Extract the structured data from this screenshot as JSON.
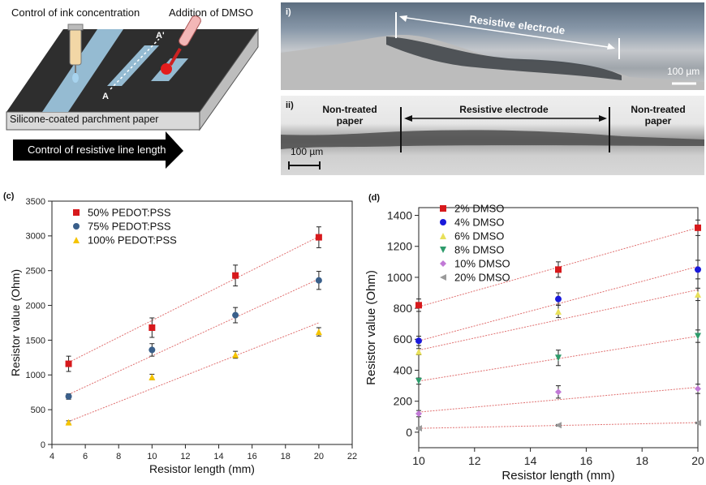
{
  "schematic": {
    "ink_label": "Control of ink concentration",
    "dmso_label": "Addition of DMSO",
    "substrate_label": "Silicone-coated parchment paper",
    "length_label": "Control of resistive line length",
    "point_a": "A",
    "point_a_prime": "A'"
  },
  "micrographs": {
    "top": {
      "panel": "i)",
      "electrode_label": "Resistive electrode",
      "scale_label": "100 µm"
    },
    "bottom": {
      "panel": "ii)",
      "left_label": "Non-treated paper",
      "center_label": "Resistive electrode",
      "right_label": "Non-treated paper",
      "scale_label": "100 µm"
    }
  },
  "chart_data": [
    {
      "panel": "(c)",
      "type": "scatter",
      "xlabel": "Resistor length (mm)",
      "ylabel": "Resistor value (Ohm)",
      "xlim": [
        4,
        22
      ],
      "ylim": [
        0,
        3500
      ],
      "xticks": [
        4,
        6,
        8,
        10,
        12,
        14,
        16,
        18,
        20,
        22
      ],
      "yticks": [
        0,
        500,
        1000,
        1500,
        2000,
        2500,
        3000,
        3500
      ],
      "legend_position": "top-left",
      "series": [
        {
          "name": "50% PEDOT:PSS",
          "marker": "square",
          "color": "#d7191c",
          "x": [
            5,
            10,
            15,
            20
          ],
          "y": [
            1160,
            1680,
            2430,
            2980
          ],
          "err": [
            110,
            140,
            150,
            150
          ],
          "fit": [
            1180,
            2990
          ]
        },
        {
          "name": "75% PEDOT:PSS",
          "marker": "circle",
          "color": "#3a5f8a",
          "x": [
            5,
            10,
            15,
            20
          ],
          "y": [
            690,
            1360,
            1860,
            2360
          ],
          "err": [
            40,
            90,
            110,
            130
          ],
          "fit": [
            720,
            2380
          ]
        },
        {
          "name": "100% PEDOT:PSS",
          "marker": "triangle",
          "color": "#f5c400",
          "x": [
            5,
            10,
            15,
            20
          ],
          "y": [
            320,
            970,
            1290,
            1620
          ],
          "err": [
            20,
            40,
            50,
            60
          ],
          "fit": [
            330,
            1750
          ]
        }
      ]
    },
    {
      "panel": "(d)",
      "type": "scatter",
      "xlabel": "Resistor length (mm)",
      "ylabel": "Resistor value (Ohm)",
      "xlim": [
        10,
        20
      ],
      "ylim": [
        -100,
        1450
      ],
      "xticks": [
        10,
        12,
        14,
        16,
        18,
        20
      ],
      "yticks": [
        0,
        200,
        400,
        600,
        800,
        1000,
        1200,
        1400
      ],
      "legend_position": "top-left",
      "series": [
        {
          "name": "2% DMSO",
          "marker": "square",
          "color": "#d7191c",
          "x": [
            10,
            15,
            20
          ],
          "y": [
            820,
            1050,
            1320
          ],
          "err": [
            40,
            50,
            50
          ],
          "fit": [
            810,
            1320
          ]
        },
        {
          "name": "4% DMSO",
          "marker": "circle",
          "color": "#1a1adb",
          "x": [
            10,
            15,
            20
          ],
          "y": [
            590,
            860,
            1050
          ],
          "err": [
            30,
            40,
            60
          ],
          "fit": [
            590,
            1070
          ]
        },
        {
          "name": "6% DMSO",
          "marker": "triangle",
          "color": "#e8e05a",
          "x": [
            10,
            15,
            20
          ],
          "y": [
            520,
            780,
            890
          ],
          "err": [
            20,
            40,
            40
          ],
          "fit": [
            530,
            920
          ]
        },
        {
          "name": "8% DMSO",
          "marker": "triangle-down",
          "color": "#2e9b6b",
          "x": [
            10,
            15,
            20
          ],
          "y": [
            330,
            480,
            620
          ],
          "err": [
            20,
            50,
            40
          ],
          "fit": [
            330,
            620
          ]
        },
        {
          "name": "10% DMSO",
          "marker": "diamond",
          "color": "#c179d6",
          "x": [
            10,
            15,
            20
          ],
          "y": [
            120,
            260,
            280
          ],
          "err": [
            20,
            40,
            30
          ],
          "fit": [
            130,
            290
          ]
        },
        {
          "name": "20% DMSO",
          "marker": "triangle-left",
          "color": "#9a9a9a",
          "x": [
            10,
            15,
            20
          ],
          "y": [
            25,
            45,
            60
          ],
          "err": [
            5,
            5,
            5
          ],
          "fit": [
            25,
            62
          ]
        }
      ]
    }
  ]
}
